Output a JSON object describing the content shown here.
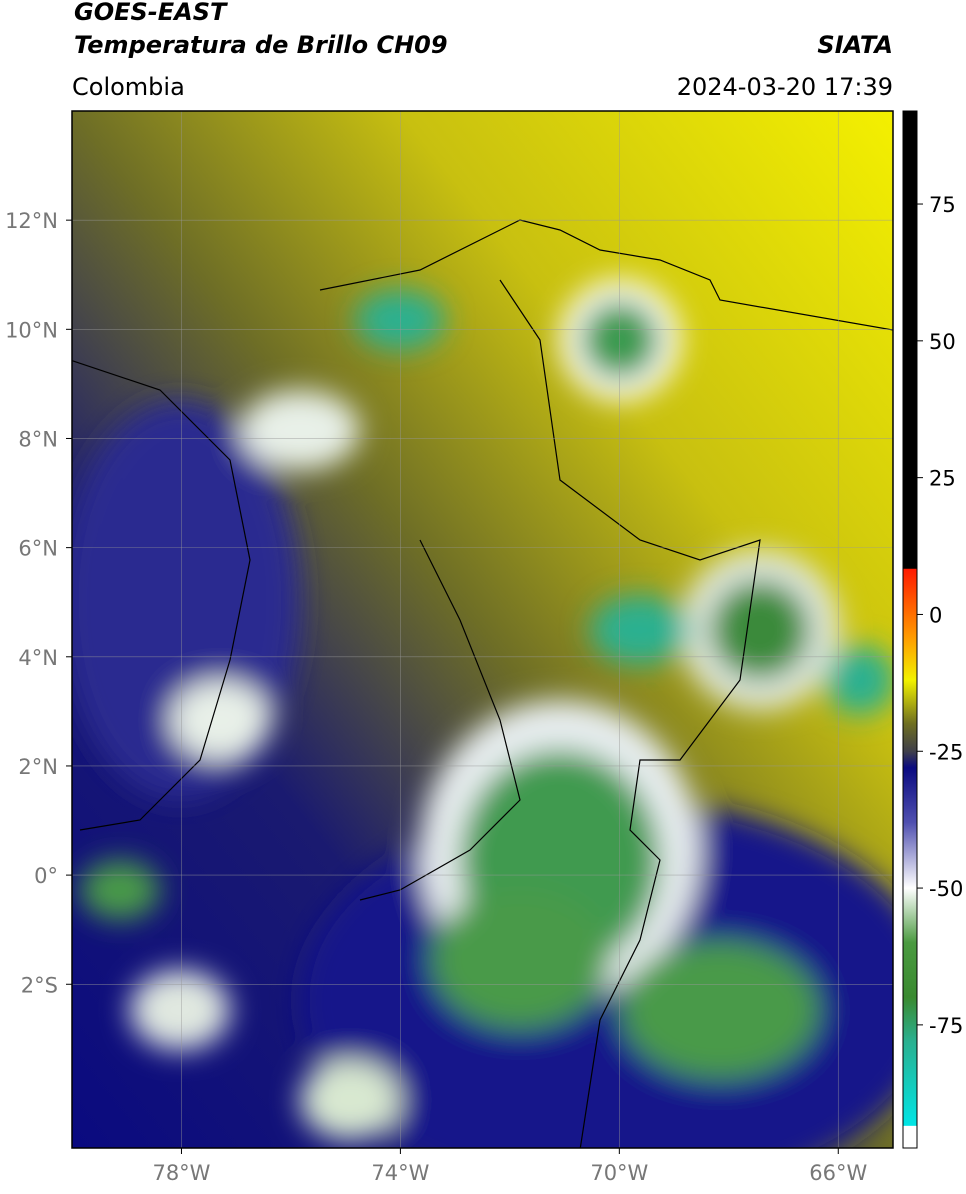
{
  "header": {
    "title": "GOES-EAST",
    "subtitle": "Temperatura de Brillo CH09",
    "source": "SIATA",
    "region": "Colombia",
    "timestamp": "2024-03-20 17:39"
  },
  "map": {
    "lon_range": [
      -80,
      -65
    ],
    "lat_range": [
      -5,
      14
    ],
    "grid": true,
    "lon_ticks": [
      {
        "value": -78,
        "label": "78°W"
      },
      {
        "value": -74,
        "label": "74°W"
      },
      {
        "value": -70,
        "label": "70°W"
      },
      {
        "value": -66,
        "label": "66°W"
      }
    ],
    "lat_ticks": [
      {
        "value": 12,
        "label": "12°N"
      },
      {
        "value": 10,
        "label": "10°N"
      },
      {
        "value": 8,
        "label": "8°N"
      },
      {
        "value": 6,
        "label": "6°N"
      },
      {
        "value": 4,
        "label": "4°N"
      },
      {
        "value": 2,
        "label": "2°N"
      },
      {
        "value": 0,
        "label": "0°"
      },
      {
        "value": -2,
        "label": "2°S"
      }
    ]
  },
  "colorbar": {
    "range": [
      -97.5,
      92
    ],
    "ticks": [
      75,
      50,
      25,
      0,
      -25,
      -50,
      -75
    ],
    "colormap": [
      {
        "value": 92,
        "color": "#000000"
      },
      {
        "value": 8.4,
        "color": "#000000"
      },
      {
        "value": 8.3,
        "color": "#ff1a00"
      },
      {
        "value": -4,
        "color": "#ff9900"
      },
      {
        "value": -12,
        "color": "#f2f200"
      },
      {
        "value": -20,
        "color": "#6e6e20"
      },
      {
        "value": -25,
        "color": "#40404a"
      },
      {
        "value": -28,
        "color": "#0a0a80"
      },
      {
        "value": -38,
        "color": "#5050b0"
      },
      {
        "value": -50,
        "color": "#ffffff"
      },
      {
        "value": -60,
        "color": "#4a9a40"
      },
      {
        "value": -70,
        "color": "#3a8a30"
      },
      {
        "value": -78,
        "color": "#2ab090"
      },
      {
        "value": -93.4,
        "color": "#00e5e5"
      },
      {
        "value": -93.5,
        "color": "#ffffff"
      },
      {
        "value": -97.5,
        "color": "#ffffff"
      }
    ]
  }
}
